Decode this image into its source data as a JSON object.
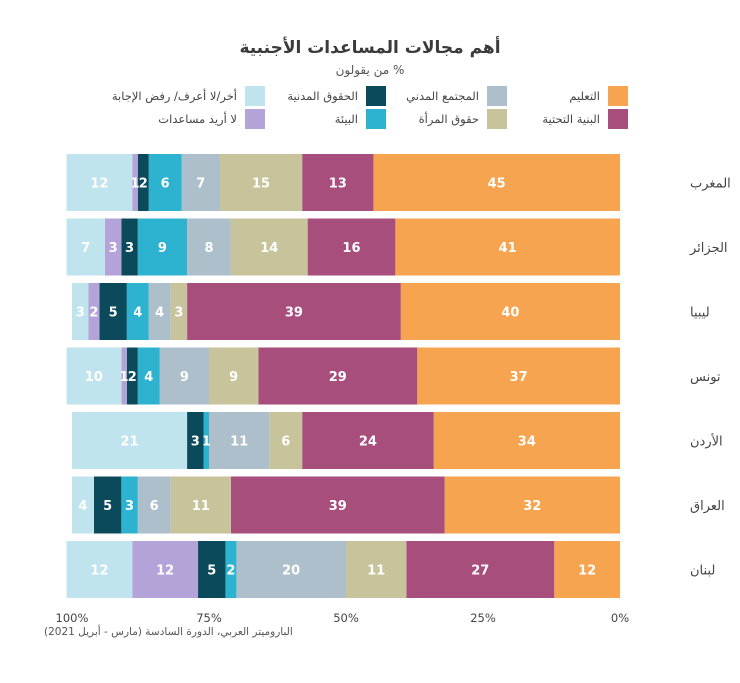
{
  "title": "أهم مجالات المساعدات الأجنبية",
  "subtitle": "من يقولون %",
  "source": "الباروميتر العربي، الدورة السادسة (مارس - أبريل 2021)",
  "chart_data": {
    "type": "bar",
    "orientation": "horizontal-stacked",
    "axis_direction": "right-to-left",
    "xlim": [
      0,
      100
    ],
    "x_ticks": [
      "0%",
      "25%",
      "50%",
      "75%",
      "100%"
    ],
    "categories": [
      "المغرب",
      "الجزائر",
      "ليبيا",
      "تونس",
      "الأردن",
      "العراق",
      "لبنان"
    ],
    "series": [
      {
        "name": "التعليم",
        "color": "#f7a450",
        "values": [
          45,
          41,
          40,
          37,
          34,
          32,
          12
        ]
      },
      {
        "name": "البنية التحتية",
        "color": "#a84e7d",
        "values": [
          13,
          16,
          39,
          29,
          24,
          39,
          27
        ]
      },
      {
        "name": "حقوق المرأة",
        "color": "#c7c39b",
        "values": [
          15,
          14,
          3,
          9,
          6,
          11,
          11
        ]
      },
      {
        "name": "المجتمع المدني",
        "color": "#aebfcc",
        "values": [
          7,
          8,
          4,
          9,
          11,
          6,
          20
        ]
      },
      {
        "name": "البيئة",
        "color": "#2db3cf",
        "values": [
          6,
          9,
          4,
          4,
          1,
          3,
          2
        ]
      },
      {
        "name": "الحقوق المدنية",
        "color": "#0b4a5a",
        "values": [
          2,
          3,
          5,
          2,
          3,
          5,
          5
        ]
      },
      {
        "name": "لا أريد مساعدات",
        "color": "#b3a3d9",
        "values": [
          1,
          3,
          2,
          1,
          0,
          0,
          12
        ]
      },
      {
        "name": "أخر/لا أعرف/ رفض الإجابة",
        "color": "#c0e4ee",
        "values": [
          12,
          7,
          3,
          10,
          21,
          4,
          12
        ]
      }
    ],
    "legend_order": [
      [
        "التعليم",
        "المجتمع المدني",
        "الحقوق المدنية",
        "أخر/لا أعرف/ رفض الإجابة"
      ],
      [
        "البنية التحتية",
        "حقوق المرأة",
        "البيئة",
        "لا أريد مساعدات"
      ]
    ],
    "legend_position": "top-right"
  }
}
